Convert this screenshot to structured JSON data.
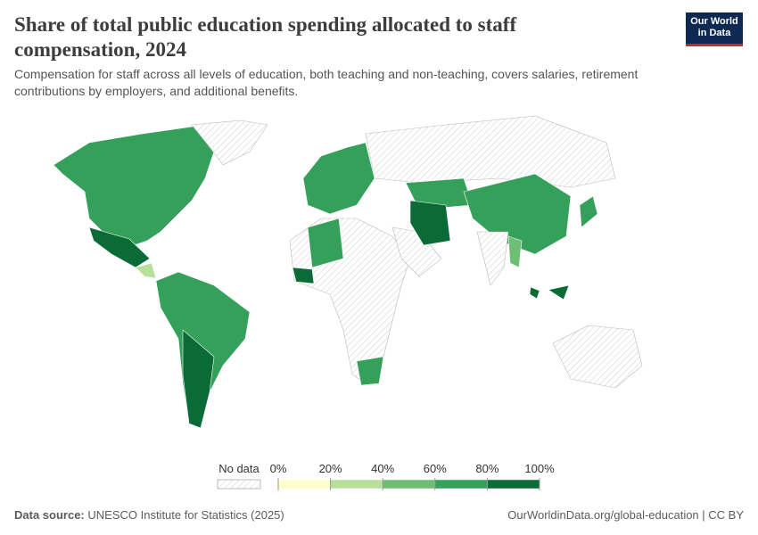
{
  "header": {
    "title": "Share of total public education spending allocated to staff compensation, 2024",
    "subtitle": "Compensation for staff across all levels of education, both teaching and non-teaching, covers salaries, retirement contributions by employers, and additional benefits.",
    "logo": [
      "Our World",
      "in Data"
    ]
  },
  "legend": {
    "no_data_label": "No data",
    "ticks": [
      {
        "value": 0,
        "label": "0%"
      },
      {
        "value": 20,
        "label": "20%"
      },
      {
        "value": 40,
        "label": "40%"
      },
      {
        "value": 60,
        "label": "60%"
      },
      {
        "value": 80,
        "label": "80%"
      },
      {
        "value": 100,
        "label": "100%"
      }
    ],
    "colors": [
      "#fcfdc8",
      "#b9e09a",
      "#6ebf74",
      "#34a05a",
      "#0a6b37"
    ]
  },
  "footer": {
    "source_label": "Data source:",
    "source": "UNESCO Institute for Statistics (2025)",
    "url": "OurWorldinData.org/global-education | CC BY"
  }
}
